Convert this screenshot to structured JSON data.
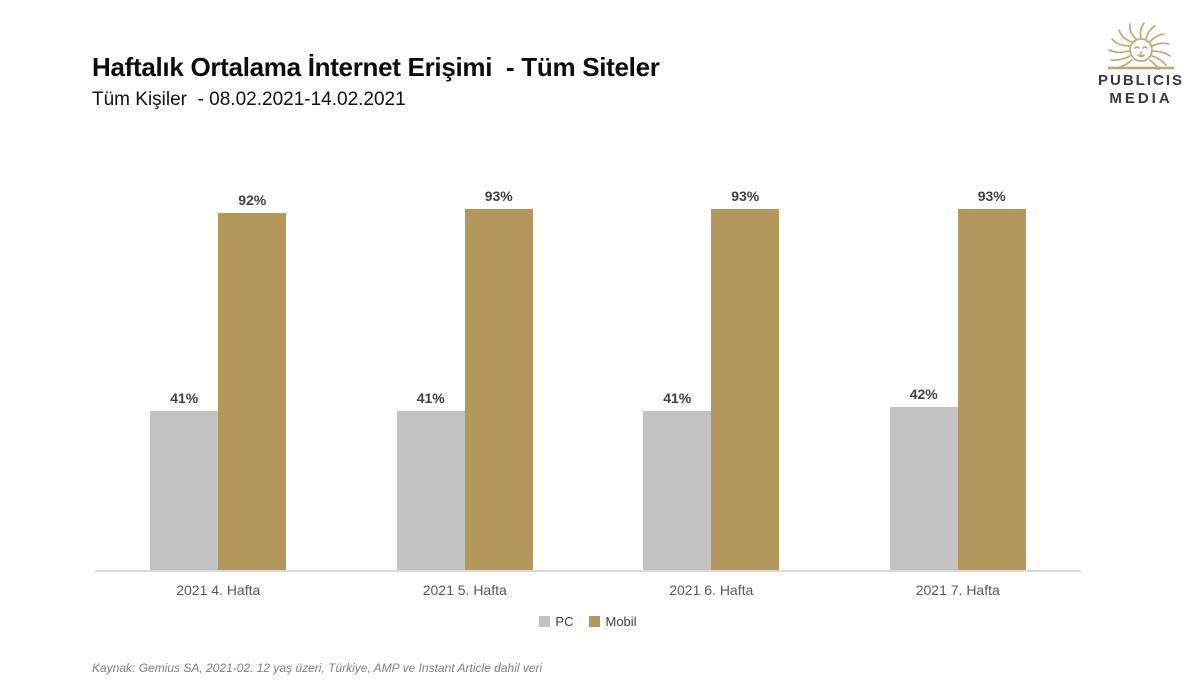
{
  "header": {
    "title": "Haftalık Ortalama İnternet Erişimi  - Tüm Siteler",
    "subtitle": "Tüm Kişiler  - 08.02.2021-14.02.2021"
  },
  "logo": {
    "icon": "publicis-lion-sunburst-icon",
    "line1": "PUBLICIS",
    "line2": "MEDIA",
    "icon_color": "#c3a171",
    "text_color": "#3a3a3a"
  },
  "chart_data": {
    "type": "bar",
    "title": "Haftalık Ortalama İnternet Erişimi - Tüm Siteler",
    "subtitle": "Tüm Kişiler - 08.02.2021-14.02.2021",
    "categories": [
      "2021 4. Hafta",
      "2021 5. Hafta",
      "2021 6. Hafta",
      "2021 7. Hafta"
    ],
    "series": [
      {
        "name": "PC",
        "color": "#c2c2c2",
        "values": [
          41,
          41,
          41,
          42
        ]
      },
      {
        "name": "Mobil",
        "color": "#b4975c",
        "values": [
          92,
          93,
          93,
          93
        ]
      }
    ],
    "value_suffix": "%",
    "xlabel": "",
    "ylabel": "",
    "ylim": [
      0,
      100
    ],
    "grid": false,
    "y_axis_visible": false,
    "legend_position": "bottom-center",
    "data_label_color": "#404040",
    "axis_tick_color": "#595959",
    "baseline_color": "#d9d9d9"
  },
  "footer": {
    "source": "Kaynak: Gemius SA, 2021-02. 12 yaş üzeri, Türkiye, AMP ve Instant Article dahil veri"
  }
}
